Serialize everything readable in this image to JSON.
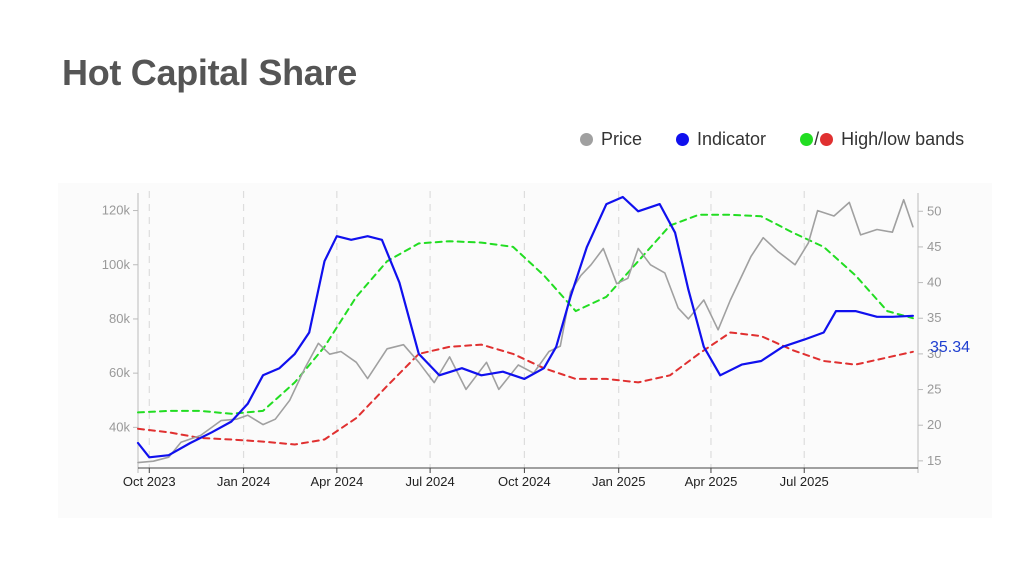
{
  "title": "Hot Capital Share",
  "legend": {
    "price_label": "Price",
    "indicator_label": "Indicator",
    "bands_label": "High/low bands",
    "separator": "/",
    "colors": {
      "price": "#a0a0a0",
      "indicator": "#1010ee",
      "high": "#22dd22",
      "low": "#e03030"
    }
  },
  "chart_data": {
    "type": "line",
    "title": "Hot Capital Share",
    "x_ticks": [
      "Oct 2023",
      "Jan 2024",
      "Apr 2024",
      "Jul 2024",
      "Oct 2024",
      "Jan 2025",
      "Apr 2025",
      "Jul 2025"
    ],
    "y_left": {
      "ticks": [
        "40k",
        "60k",
        "80k",
        "100k",
        "120k"
      ],
      "tick_values": [
        40000,
        60000,
        80000,
        100000,
        120000
      ],
      "range": [
        25000,
        125000
      ]
    },
    "y_right": {
      "ticks": [
        "15",
        "20",
        "25",
        "30",
        "35",
        "40",
        "45",
        "50"
      ],
      "tick_values": [
        15,
        20,
        25,
        30,
        35,
        40,
        45,
        50
      ],
      "range": [
        14,
        52
      ]
    },
    "x_range": [
      "2023-09-20",
      "2025-10-20"
    ],
    "grid": "vertical dashed",
    "last_indicator_value": "35.34",
    "series": [
      {
        "name": "Price",
        "axis": "left",
        "color": "#a0a0a0",
        "style": "solid",
        "points": [
          [
            "2023-09-20",
            27000
          ],
          [
            "2023-10-05",
            27500
          ],
          [
            "2023-10-20",
            29000
          ],
          [
            "2023-11-01",
            34500
          ],
          [
            "2023-11-20",
            37000
          ],
          [
            "2023-12-10",
            42500
          ],
          [
            "2023-12-25",
            43000
          ],
          [
            "2024-01-05",
            44500
          ],
          [
            "2024-01-20",
            41000
          ],
          [
            "2024-02-01",
            43000
          ],
          [
            "2024-02-15",
            50000
          ],
          [
            "2024-03-01",
            62000
          ],
          [
            "2024-03-14",
            71000
          ],
          [
            "2024-03-25",
            67000
          ],
          [
            "2024-04-05",
            68000
          ],
          [
            "2024-04-20",
            64000
          ],
          [
            "2024-05-01",
            58000
          ],
          [
            "2024-05-20",
            69000
          ],
          [
            "2024-06-05",
            70500
          ],
          [
            "2024-06-20",
            64000
          ],
          [
            "2024-07-05",
            56500
          ],
          [
            "2024-07-20",
            66000
          ],
          [
            "2024-08-05",
            54000
          ],
          [
            "2024-08-25",
            64000
          ],
          [
            "2024-09-06",
            54000
          ],
          [
            "2024-09-25",
            63000
          ],
          [
            "2024-10-10",
            60000
          ],
          [
            "2024-10-25",
            68000
          ],
          [
            "2024-11-05",
            70000
          ],
          [
            "2024-11-15",
            90000
          ],
          [
            "2024-11-25",
            96000
          ],
          [
            "2024-12-05",
            100000
          ],
          [
            "2024-12-17",
            106000
          ],
          [
            "2024-12-30",
            93000
          ],
          [
            "2025-01-10",
            95000
          ],
          [
            "2025-01-20",
            106000
          ],
          [
            "2025-02-01",
            100000
          ],
          [
            "2025-02-15",
            97000
          ],
          [
            "2025-02-28",
            84000
          ],
          [
            "2025-03-10",
            80000
          ],
          [
            "2025-03-25",
            87000
          ],
          [
            "2025-04-08",
            76000
          ],
          [
            "2025-04-20",
            87000
          ],
          [
            "2025-05-10",
            103000
          ],
          [
            "2025-05-22",
            110000
          ],
          [
            "2025-06-05",
            105000
          ],
          [
            "2025-06-22",
            100000
          ],
          [
            "2025-07-05",
            108000
          ],
          [
            "2025-07-14",
            120000
          ],
          [
            "2025-07-30",
            118000
          ],
          [
            "2025-08-14",
            123000
          ],
          [
            "2025-08-25",
            111000
          ],
          [
            "2025-09-10",
            113000
          ],
          [
            "2025-09-25",
            112000
          ],
          [
            "2025-10-06",
            124000
          ],
          [
            "2025-10-15",
            114000
          ]
        ]
      },
      {
        "name": "Indicator",
        "axis": "right",
        "color": "#1010ee",
        "style": "solid",
        "points": [
          [
            "2023-09-20",
            17.5
          ],
          [
            "2023-10-01",
            15.5
          ],
          [
            "2023-10-20",
            15.8
          ],
          [
            "2023-11-10",
            17.5
          ],
          [
            "2023-12-01",
            19.0
          ],
          [
            "2023-12-20",
            20.5
          ],
          [
            "2024-01-05",
            23.0
          ],
          [
            "2024-01-20",
            27.0
          ],
          [
            "2024-02-05",
            28.0
          ],
          [
            "2024-02-20",
            30.0
          ],
          [
            "2024-03-05",
            33.0
          ],
          [
            "2024-03-20",
            43.0
          ],
          [
            "2024-04-01",
            46.5
          ],
          [
            "2024-04-15",
            46.0
          ],
          [
            "2024-05-01",
            46.5
          ],
          [
            "2024-05-15",
            46.0
          ],
          [
            "2024-06-01",
            40.0
          ],
          [
            "2024-06-20",
            30.0
          ],
          [
            "2024-07-10",
            27.0
          ],
          [
            "2024-08-01",
            28.0
          ],
          [
            "2024-08-20",
            27.0
          ],
          [
            "2024-09-10",
            27.5
          ],
          [
            "2024-10-01",
            26.5
          ],
          [
            "2024-10-20",
            28.0
          ],
          [
            "2024-11-01",
            31.0
          ],
          [
            "2024-11-15",
            38.0
          ],
          [
            "2024-12-01",
            45.0
          ],
          [
            "2024-12-20",
            51.0
          ],
          [
            "2025-01-05",
            52.0
          ],
          [
            "2025-01-20",
            50.0
          ],
          [
            "2025-02-10",
            51.0
          ],
          [
            "2025-02-25",
            47.0
          ],
          [
            "2025-03-10",
            39.0
          ],
          [
            "2025-03-25",
            31.0
          ],
          [
            "2025-04-10",
            27.0
          ],
          [
            "2025-05-01",
            28.5
          ],
          [
            "2025-05-20",
            29.0
          ],
          [
            "2025-06-10",
            31.0
          ],
          [
            "2025-07-01",
            32.0
          ],
          [
            "2025-07-20",
            33.0
          ],
          [
            "2025-08-01",
            36.0
          ],
          [
            "2025-08-20",
            36.0
          ],
          [
            "2025-09-10",
            35.2
          ],
          [
            "2025-09-25",
            35.2
          ],
          [
            "2025-10-15",
            35.34
          ]
        ]
      },
      {
        "name": "High band",
        "axis": "right",
        "color": "#22dd22",
        "style": "dashed",
        "points": [
          [
            "2023-09-20",
            21.8
          ],
          [
            "2023-10-20",
            22.0
          ],
          [
            "2023-11-20",
            22.0
          ],
          [
            "2023-12-20",
            21.6
          ],
          [
            "2024-01-20",
            22.0
          ],
          [
            "2024-02-20",
            26.0
          ],
          [
            "2024-03-20",
            31.0
          ],
          [
            "2024-04-20",
            38.0
          ],
          [
            "2024-05-20",
            43.0
          ],
          [
            "2024-06-20",
            45.5
          ],
          [
            "2024-07-20",
            45.8
          ],
          [
            "2024-08-20",
            45.6
          ],
          [
            "2024-09-20",
            45.0
          ],
          [
            "2024-10-20",
            41.0
          ],
          [
            "2024-11-20",
            36.0
          ],
          [
            "2024-12-20",
            38.0
          ],
          [
            "2025-01-20",
            43.0
          ],
          [
            "2025-02-20",
            48.0
          ],
          [
            "2025-03-20",
            49.5
          ],
          [
            "2025-04-20",
            49.5
          ],
          [
            "2025-05-20",
            49.3
          ],
          [
            "2025-06-20",
            47.0
          ],
          [
            "2025-07-20",
            45.0
          ],
          [
            "2025-08-20",
            41.0
          ],
          [
            "2025-09-20",
            36.0
          ],
          [
            "2025-10-15",
            35.0
          ]
        ]
      },
      {
        "name": "Low band",
        "axis": "right",
        "color": "#e03030",
        "style": "dashed",
        "points": [
          [
            "2023-09-20",
            19.5
          ],
          [
            "2023-10-20",
            19.0
          ],
          [
            "2023-11-20",
            18.2
          ],
          [
            "2023-12-20",
            18.0
          ],
          [
            "2024-01-20",
            17.7
          ],
          [
            "2024-02-20",
            17.3
          ],
          [
            "2024-03-20",
            18.0
          ],
          [
            "2024-04-20",
            21.0
          ],
          [
            "2024-05-20",
            25.5
          ],
          [
            "2024-06-20",
            30.0
          ],
          [
            "2024-07-20",
            31.0
          ],
          [
            "2024-08-20",
            31.3
          ],
          [
            "2024-09-20",
            30.0
          ],
          [
            "2024-10-20",
            28.0
          ],
          [
            "2024-11-20",
            26.5
          ],
          [
            "2024-12-20",
            26.5
          ],
          [
            "2025-01-20",
            26.0
          ],
          [
            "2025-02-20",
            27.0
          ],
          [
            "2025-03-20",
            30.0
          ],
          [
            "2025-04-20",
            33.0
          ],
          [
            "2025-05-20",
            32.5
          ],
          [
            "2025-06-20",
            30.5
          ],
          [
            "2025-07-20",
            29.0
          ],
          [
            "2025-08-20",
            28.5
          ],
          [
            "2025-09-20",
            29.5
          ],
          [
            "2025-10-15",
            30.3
          ]
        ]
      }
    ]
  }
}
